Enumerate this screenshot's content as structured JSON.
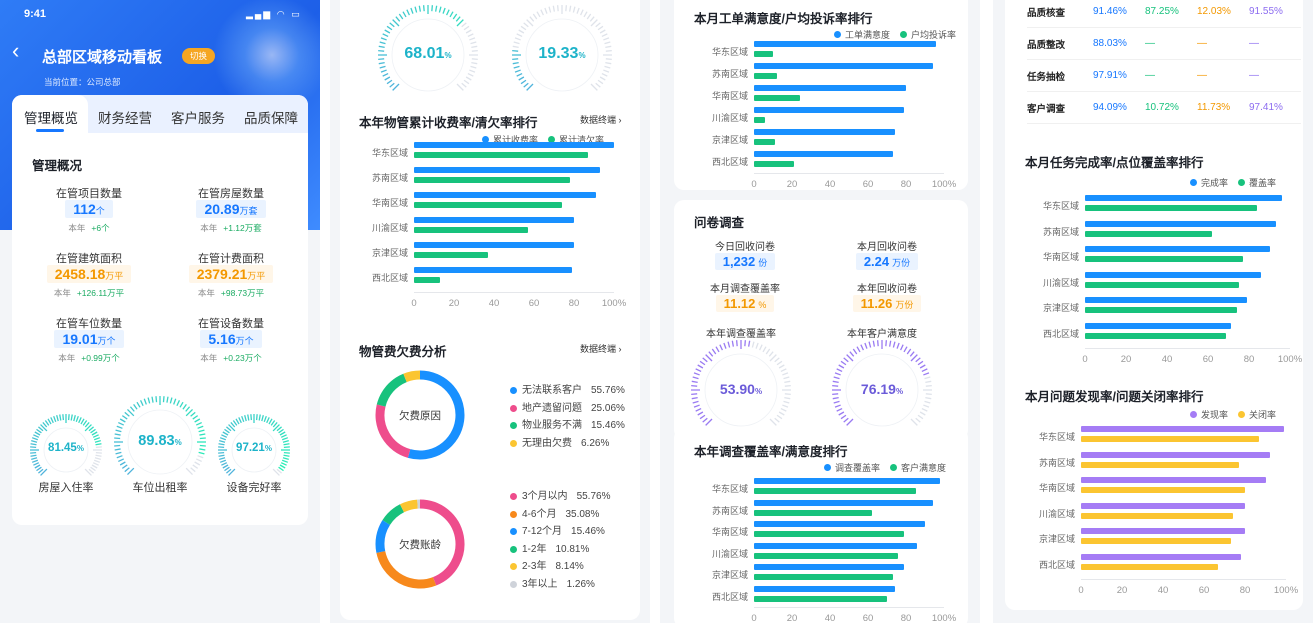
{
  "status": {
    "time": "9:41"
  },
  "header": {
    "back": "‹",
    "title": "总部区域移动看板",
    "switch_label": "切换",
    "location": "当前位置：公司总部"
  },
  "tabs": [
    {
      "label": "管理概览",
      "active": true
    },
    {
      "label": "财务经营",
      "active": false
    },
    {
      "label": "客户服务",
      "active": false
    },
    {
      "label": "品质保障",
      "active": false
    }
  ],
  "overview": {
    "title": "管理概况",
    "kpis": [
      {
        "label": "在管项目数量",
        "value": "112",
        "unit": "个",
        "sub_prefix": "本年",
        "sub_delta": "+6个",
        "style": "blue"
      },
      {
        "label": "在管房屋数量",
        "value": "20.89",
        "unit": "万套",
        "sub_prefix": "本年",
        "sub_delta": "+1.12万套",
        "style": "blue"
      },
      {
        "label": "在管建筑面积",
        "value": "2458.18",
        "unit": "万平",
        "sub_prefix": "本年",
        "sub_delta": "+126.11万平",
        "style": "orange"
      },
      {
        "label": "在管计费面积",
        "value": "2379.21",
        "unit": "万平",
        "sub_prefix": "本年",
        "sub_delta": "+98.73万平",
        "style": "orange"
      },
      {
        "label": "在管车位数量",
        "value": "19.01",
        "unit": "万个",
        "sub_prefix": "本年",
        "sub_delta": "+0.99万个",
        "style": "blue"
      },
      {
        "label": "在管设备数量",
        "value": "5.16",
        "unit": "万个",
        "sub_prefix": "本年",
        "sub_delta": "+0.23万个",
        "style": "blue"
      }
    ],
    "gauges": [
      {
        "label": "房屋入住率",
        "value": "81.45",
        "unit": "%",
        "fraction": 0.8145
      },
      {
        "label": "车位出租率",
        "value": "89.83",
        "unit": "%",
        "fraction": 0.8983
      },
      {
        "label": "设备完好率",
        "value": "97.21",
        "unit": "%",
        "fraction": 0.9721
      }
    ]
  },
  "panel2": {
    "top_gauges": [
      {
        "value": "68.01",
        "unit": "%",
        "fraction": 0.6801
      },
      {
        "value": "19.33",
        "unit": "%",
        "fraction": 0.1933
      }
    ],
    "more_label": "数据终端 ›",
    "pies": [
      {
        "center": "欠费原因",
        "slices": [
          {
            "label": "无法联系客户",
            "value": "55.76%",
            "pct": 55.76,
            "color": "#1890ff"
          },
          {
            "label": "地产遗留问题",
            "value": "25.06%",
            "pct": 25.06,
            "color": "#ee4d8c"
          },
          {
            "label": "物业服务不满",
            "value": "15.46%",
            "pct": 15.46,
            "color": "#17c27d"
          },
          {
            "label": "无理由欠费",
            "value": "6.26%",
            "pct": 6.26,
            "color": "#fbc531"
          }
        ]
      },
      {
        "center": "欠费账龄",
        "slices": [
          {
            "label": "3个月以内",
            "value": "55.76%",
            "pct": 55.76,
            "color": "#ee4d8c"
          },
          {
            "label": "4-6个月",
            "value": "35.08%",
            "pct": 35.08,
            "color": "#f7891c"
          },
          {
            "label": "7-12个月",
            "value": "15.46%",
            "pct": 15.46,
            "color": "#1890ff"
          },
          {
            "label": "1-2年",
            "value": "10.81%",
            "pct": 10.81,
            "color": "#17c27d"
          },
          {
            "label": "2-3年",
            "value": "8.14%",
            "pct": 8.14,
            "color": "#fbc531"
          },
          {
            "label": "3年以上",
            "value": "1.26%",
            "pct": 1.26,
            "color": "#cfd3da"
          }
        ]
      }
    ],
    "pie_section_title": "物管费欠费分析"
  },
  "panel3": {
    "questionnaire": {
      "title": "问卷调查",
      "items": [
        {
          "label": "今日回收问卷",
          "value": "1,232",
          "unit": "份",
          "style": "blue"
        },
        {
          "label": "本月回收问卷",
          "value": "2.24",
          "unit": "万份",
          "style": "blue"
        },
        {
          "label": "本月调查覆盖率",
          "value": "11.12",
          "unit": "%",
          "style": "orange"
        },
        {
          "label": "本年回收问卷",
          "value": "11.26",
          "unit": "万份",
          "style": "orange"
        }
      ],
      "gauges": [
        {
          "label": "本年调查覆盖率",
          "value": "53.90",
          "unit": "%",
          "fraction": 0.539
        },
        {
          "label": "本年客户满意度",
          "value": "76.19",
          "unit": "%",
          "fraction": 0.7619
        }
      ]
    }
  },
  "panel4": {
    "quality_table": [
      {
        "name": "品质核查",
        "v": [
          "91.46%",
          "87.25%",
          "12.03%",
          "91.55%"
        ]
      },
      {
        "name": "品质整改",
        "v": [
          "88.03%",
          "—",
          "—",
          "—"
        ]
      },
      {
        "name": "任务抽检",
        "v": [
          "97.91%",
          "—",
          "—",
          "—"
        ]
      },
      {
        "name": "客户调查",
        "v": [
          "94.09%",
          "10.72%",
          "11.73%",
          "97.41%"
        ]
      }
    ],
    "col_colors": [
      "#1677ff",
      "#17c27d",
      "#f39800",
      "#8c6cf0"
    ]
  },
  "chart_data": [
    {
      "type": "bar",
      "orientation": "horizontal",
      "title": "本年物管累计收费率/清欠率排行",
      "categories": [
        "华东区域",
        "苏南区域",
        "华南区域",
        "川渝区域",
        "京津区域",
        "西北区域"
      ],
      "series": [
        {
          "name": "累计收费率",
          "color": "#1890ff",
          "values": [
            100,
            93,
            91,
            80,
            80,
            79
          ]
        },
        {
          "name": "累计清欠率",
          "color": "#17c27d",
          "values": [
            87,
            78,
            74,
            57,
            37,
            13
          ]
        }
      ],
      "xticks": [
        "0",
        "20",
        "40",
        "60",
        "80",
        "100%"
      ],
      "xlim": [
        0,
        100
      ]
    },
    {
      "type": "bar",
      "orientation": "horizontal",
      "title": "本月工单满意度/户均投诉率排行",
      "categories": [
        "华东区域",
        "苏南区域",
        "华南区域",
        "川渝区域",
        "京津区域",
        "西北区域"
      ],
      "series": [
        {
          "name": "工单满意度",
          "color": "#1890ff",
          "values": [
            96,
            94,
            80,
            79,
            74,
            73
          ]
        },
        {
          "name": "户均投诉率",
          "color": "#17c27d",
          "values": [
            10,
            12,
            24,
            6,
            11,
            21
          ]
        }
      ],
      "xticks": [
        "0",
        "20",
        "40",
        "60",
        "80",
        "100%"
      ],
      "xlim": [
        0,
        100
      ]
    },
    {
      "type": "bar",
      "orientation": "horizontal",
      "title": "本年调查覆盖率/满意度排行",
      "categories": [
        "华东区域",
        "苏南区域",
        "华南区域",
        "川渝区域",
        "京津区域",
        "西北区域"
      ],
      "series": [
        {
          "name": "调查覆盖率",
          "color": "#1890ff",
          "values": [
            98,
            94,
            90,
            86,
            79,
            74
          ]
        },
        {
          "name": "客户满意度",
          "color": "#17c27d",
          "values": [
            85,
            62,
            79,
            76,
            73,
            70
          ]
        }
      ],
      "xticks": [
        "0",
        "20",
        "40",
        "60",
        "80",
        "100%"
      ],
      "xlim": [
        0,
        100
      ]
    },
    {
      "type": "bar",
      "orientation": "horizontal",
      "title": "本月任务完成率/点位覆盖率排行",
      "categories": [
        "华东区域",
        "苏南区域",
        "华南区域",
        "川渝区域",
        "京津区域",
        "西北区域"
      ],
      "series": [
        {
          "name": "完成率",
          "color": "#1890ff",
          "values": [
            96,
            93,
            90,
            86,
            79,
            71
          ]
        },
        {
          "name": "覆盖率",
          "color": "#17c27d",
          "values": [
            84,
            62,
            77,
            75,
            74,
            69
          ]
        }
      ],
      "xticks": [
        "0",
        "20",
        "40",
        "60",
        "80",
        "100%"
      ],
      "xlim": [
        0,
        100
      ]
    },
    {
      "type": "bar",
      "orientation": "horizontal",
      "title": "本月问题发现率/问题关闭率排行",
      "categories": [
        "华东区域",
        "苏南区域",
        "华南区域",
        "川渝区域",
        "京津区域",
        "西北区域"
      ],
      "series": [
        {
          "name": "发现率",
          "color": "#a57cf5",
          "values": [
            99,
            92,
            90,
            80,
            80,
            78
          ]
        },
        {
          "name": "关闭率",
          "color": "#fbc531",
          "values": [
            87,
            77,
            80,
            74,
            73,
            67
          ]
        }
      ],
      "xticks": [
        "0",
        "20",
        "40",
        "60",
        "80",
        "100%"
      ],
      "xlim": [
        0,
        100
      ]
    }
  ]
}
